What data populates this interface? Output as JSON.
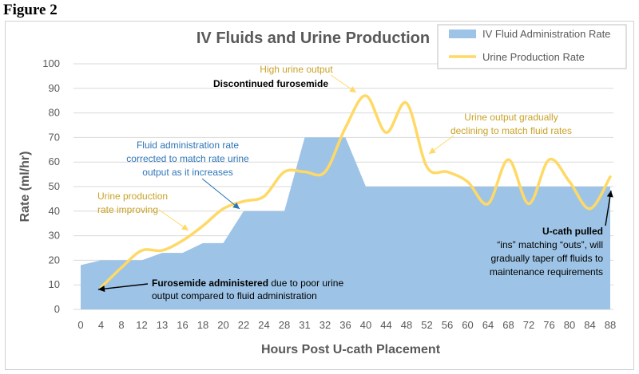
{
  "figure_label": "Figure 2",
  "colors": {
    "fluid": "#9dc3e6",
    "urine": "#ffd966",
    "grid": "#d9d9d9",
    "axis_text": "#595959",
    "ann_gold": "#c9a227",
    "ann_blue": "#2e75b6",
    "ann_black": "#000000"
  },
  "chart_data": {
    "type": "area",
    "title": "IV Fluids and Urine Production",
    "xlabel": "Hours Post U-cath Placement",
    "ylabel": "Rate (ml/hr)",
    "ylim": [
      0,
      100
    ],
    "yticks": [
      0,
      10,
      20,
      30,
      40,
      50,
      60,
      70,
      80,
      90,
      100
    ],
    "grid": true,
    "legend_position": "top-right",
    "categories": [
      "0",
      "4",
      "8",
      "12",
      "13",
      "16",
      "18",
      "20",
      "22",
      "24",
      "28",
      "31",
      "32",
      "36",
      "40",
      "44",
      "48",
      "52",
      "56",
      "60",
      "64",
      "68",
      "72",
      "76",
      "80",
      "84",
      "88"
    ],
    "series": [
      {
        "name": "IV Fluid Administration Rate",
        "kind": "area",
        "values": [
          18,
          20,
          20,
          20,
          23,
          23,
          27,
          27,
          40,
          40,
          40,
          70,
          70,
          70,
          50,
          50,
          50,
          50,
          50,
          50,
          50,
          50,
          50,
          50,
          50,
          50,
          50
        ]
      },
      {
        "name": "Urine Production Rate",
        "kind": "line",
        "values": [
          null,
          9,
          17,
          24,
          24,
          28,
          34,
          41,
          44,
          46,
          56,
          56,
          56,
          74,
          87,
          72,
          84,
          58,
          56,
          52,
          43,
          61,
          43,
          61,
          52,
          41,
          54
        ]
      }
    ],
    "annotations": [
      {
        "id": "high-urine",
        "lines": [
          "High urine output"
        ],
        "color": "ann_gold",
        "bold": false
      },
      {
        "id": "discontinued",
        "lines": [
          "Discontinued furosemide"
        ],
        "color": "ann_black",
        "bold": true
      },
      {
        "id": "fluid-corrected",
        "lines": [
          "Fluid administration rate",
          "corrected to match rate urine",
          "output as it increases"
        ],
        "color": "ann_blue",
        "bold": false
      },
      {
        "id": "urine-improving",
        "lines": [
          "Urine production",
          "rate improving"
        ],
        "color": "ann_gold",
        "bold": false
      },
      {
        "id": "urine-declining",
        "lines": [
          "Urine output gradually",
          "declining to match fluid rates"
        ],
        "color": "ann_gold",
        "bold": false
      },
      {
        "id": "furosemide",
        "bold_text": "Furosemide administered",
        "rest_text": " due to poor urine",
        "line2": "output compared to fluid administration",
        "color": "ann_black"
      },
      {
        "id": "ucath",
        "lines": [
          "U-cath pulled",
          "“ins” matching “outs”, will",
          "gradually taper off fluids to",
          "maintenance requirements"
        ],
        "color": "ann_black",
        "bold_first": true
      }
    ]
  }
}
